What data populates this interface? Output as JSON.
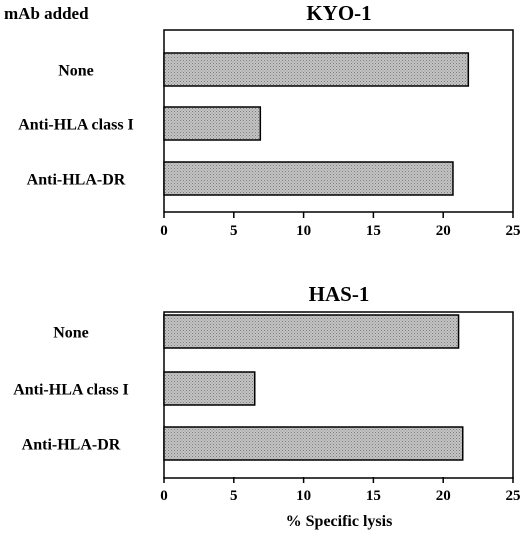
{
  "header": {
    "mab_label": "mAb added"
  },
  "chart_data": [
    {
      "type": "bar",
      "orientation": "horizontal",
      "title": "KYO-1",
      "categories": [
        "None",
        "Anti-HLA class I",
        "Anti-HLA-DR"
      ],
      "values": [
        21.8,
        6.9,
        20.7
      ],
      "xlim": [
        0,
        25
      ],
      "xticks": [
        "0",
        "5",
        "10",
        "15",
        "20",
        "25"
      ],
      "xlabel": "",
      "grid": false,
      "bar_fill": "#b9b9b9"
    },
    {
      "type": "bar",
      "orientation": "horizontal",
      "title": "HAS-1",
      "categories": [
        "None",
        "Anti-HLA class I",
        "Anti-HLA-DR"
      ],
      "values": [
        21.1,
        6.5,
        21.4
      ],
      "xlim": [
        0,
        25
      ],
      "xticks": [
        "0",
        "5",
        "10",
        "15",
        "20",
        "25"
      ],
      "xlabel": "% Specific lysis",
      "grid": false,
      "bar_fill": "#b9b9b9"
    }
  ]
}
